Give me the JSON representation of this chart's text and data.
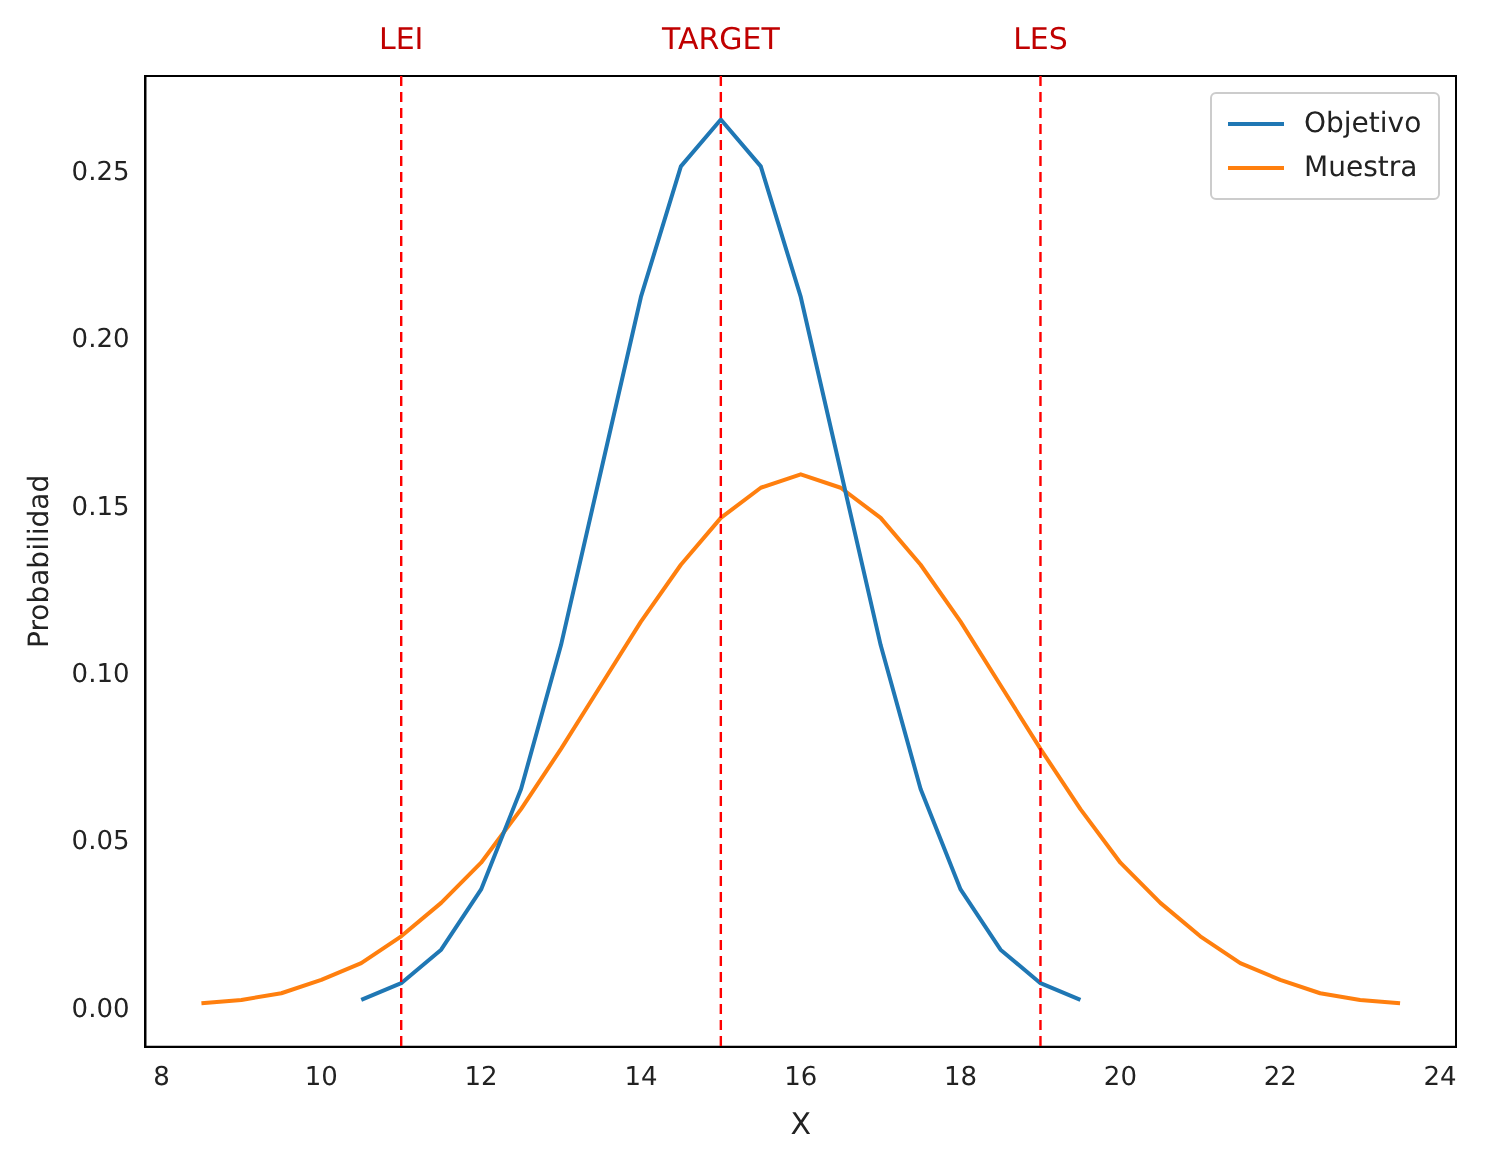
{
  "chart_data": {
    "type": "line",
    "xlabel": "X",
    "ylabel": "Probabilidad",
    "xlim": [
      7.8,
      24.2
    ],
    "ylim": [
      -0.011,
      0.279
    ],
    "xticks": [
      8,
      10,
      12,
      14,
      16,
      18,
      20,
      22,
      24
    ],
    "yticks": [
      {
        "value": 0,
        "label": "0.00"
      },
      {
        "value": 0.05,
        "label": "0.05"
      },
      {
        "value": 0.1,
        "label": "0.10"
      },
      {
        "value": 0.15,
        "label": "0.15"
      },
      {
        "value": 0.2,
        "label": "0.20"
      },
      {
        "value": 0.25,
        "label": "0.25"
      }
    ],
    "grid": false,
    "legend": "top right",
    "marker": "none",
    "line_style": "solid",
    "series": [
      {
        "name": "Objetivo",
        "color": "#1f77b4",
        "x": [
          10.5,
          11,
          11.5,
          12,
          12.5,
          13,
          13.5,
          14,
          14.5,
          15,
          15.5,
          16,
          16.5,
          17,
          17.5,
          18,
          18.5,
          19,
          19.5
        ],
        "values": [
          0.003,
          0.008,
          0.018,
          0.036,
          0.066,
          0.109,
          0.161,
          0.213,
          0.252,
          0.266,
          0.252,
          0.213,
          0.161,
          0.109,
          0.066,
          0.036,
          0.018,
          0.008,
          0.003
        ]
      },
      {
        "name": "Muestra",
        "color": "#ff7f0e",
        "x": [
          8.5,
          9,
          9.5,
          10,
          10.5,
          11,
          11.5,
          12,
          12.5,
          13,
          13.5,
          14,
          14.5,
          15,
          15.5,
          16,
          16.5,
          17,
          17.5,
          18,
          18.5,
          19,
          19.5,
          20,
          20.5,
          21,
          21.5,
          22,
          22.5,
          23,
          23.5
        ],
        "values": [
          0.002,
          0.003,
          0.005,
          0.009,
          0.014,
          0.022,
          0.032,
          0.044,
          0.06,
          0.078,
          0.097,
          0.116,
          0.133,
          0.147,
          0.156,
          0.16,
          0.156,
          0.147,
          0.133,
          0.116,
          0.097,
          0.078,
          0.06,
          0.044,
          0.032,
          0.022,
          0.014,
          0.009,
          0.005,
          0.003,
          0.002
        ]
      }
    ],
    "ref_lines": [
      {
        "axis": "x",
        "value": 11,
        "label": "LEI",
        "color": "#ff0000",
        "line_style": "dashed"
      },
      {
        "axis": "x",
        "value": 15,
        "label": "TARGET",
        "color": "#ff0000",
        "line_style": "dashed"
      },
      {
        "axis": "x",
        "value": 19,
        "label": "LES",
        "color": "#ff0000",
        "line_style": "dashed"
      }
    ]
  }
}
